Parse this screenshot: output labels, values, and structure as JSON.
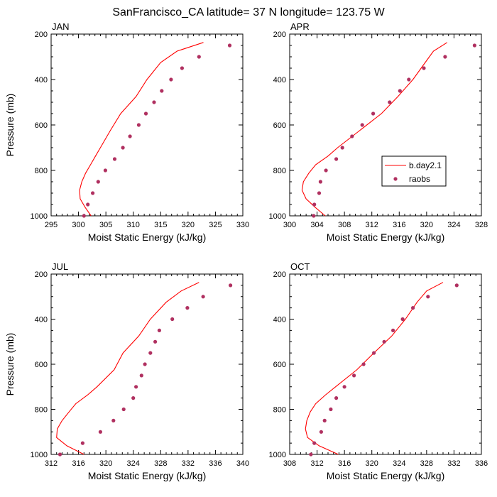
{
  "title": "SanFrancisco_CA  latitude= 37 N longitude= 123.75 W",
  "colors": {
    "model": "#ff0000",
    "obs": "#b03060",
    "axis": "#000000"
  },
  "chart_data": [
    {
      "type": "line",
      "panel": "JAN",
      "xlabel": "Moist Static Energy (kJ/kg)",
      "ylabel": "Pressure (mb)",
      "xlim": [
        295,
        330
      ],
      "ylim": [
        1000,
        200
      ],
      "y_inverted": true,
      "xticks": [
        295,
        300,
        305,
        310,
        315,
        320,
        325,
        330
      ],
      "yticks": [
        200,
        400,
        600,
        800,
        1000
      ],
      "series": [
        {
          "name": "b.day2.1",
          "style": "line",
          "points": [
            [
              302.3,
              1000
            ],
            [
              301.2,
              962
            ],
            [
              300.3,
              925
            ],
            [
              300.2,
              887
            ],
            [
              300.6,
              850
            ],
            [
              301.3,
              812
            ],
            [
              302.2,
              775
            ],
            [
              303.1,
              737
            ],
            [
              304.0,
              700
            ],
            [
              305.8,
              625
            ],
            [
              307.7,
              550
            ],
            [
              310.5,
              475
            ],
            [
              312.5,
              400
            ],
            [
              315.0,
              325
            ],
            [
              318.0,
              275
            ],
            [
              322.8,
              237
            ]
          ]
        },
        {
          "name": "raobs",
          "style": "markers",
          "points": [
            [
              301.0,
              1000
            ],
            [
              301.7,
              950
            ],
            [
              302.6,
              900
            ],
            [
              303.6,
              850
            ],
            [
              304.9,
              800
            ],
            [
              306.6,
              750
            ],
            [
              308.1,
              700
            ],
            [
              309.4,
              650
            ],
            [
              311.0,
              600
            ],
            [
              312.3,
              550
            ],
            [
              313.8,
              500
            ],
            [
              315.2,
              450
            ],
            [
              316.9,
              400
            ],
            [
              318.9,
              350
            ],
            [
              322.0,
              300
            ],
            [
              327.6,
              250
            ]
          ]
        }
      ]
    },
    {
      "type": "line",
      "panel": "APR",
      "xlabel": "Moist Static Energy (kJ/kg)",
      "ylabel": "Pressure (mb)",
      "xlim": [
        300,
        328
      ],
      "ylim": [
        1000,
        200
      ],
      "y_inverted": true,
      "xticks": [
        300,
        304,
        308,
        312,
        316,
        320,
        324,
        328
      ],
      "yticks": [
        200,
        400,
        600,
        800,
        1000
      ],
      "series": [
        {
          "name": "b.day2.1",
          "style": "line",
          "points": [
            [
              305.2,
              1000
            ],
            [
              303.7,
              962
            ],
            [
              302.4,
              925
            ],
            [
              301.8,
              887
            ],
            [
              302.0,
              850
            ],
            [
              302.8,
              812
            ],
            [
              303.8,
              775
            ],
            [
              305.6,
              737
            ],
            [
              307.0,
              700
            ],
            [
              310.2,
              625
            ],
            [
              313.4,
              550
            ],
            [
              315.8,
              475
            ],
            [
              318.0,
              400
            ],
            [
              319.8,
              325
            ],
            [
              321.0,
              275
            ],
            [
              323.0,
              237
            ]
          ]
        },
        {
          "name": "raobs",
          "style": "markers",
          "points": [
            [
              303.5,
              1000
            ],
            [
              303.6,
              950
            ],
            [
              304.3,
              900
            ],
            [
              304.5,
              850
            ],
            [
              305.3,
              800
            ],
            [
              306.8,
              750
            ],
            [
              307.7,
              700
            ],
            [
              309.1,
              650
            ],
            [
              310.6,
              600
            ],
            [
              312.2,
              550
            ],
            [
              314.6,
              500
            ],
            [
              316.1,
              450
            ],
            [
              317.4,
              400
            ],
            [
              319.6,
              350
            ],
            [
              322.7,
              300
            ],
            [
              327.0,
              250
            ]
          ]
        }
      ]
    },
    {
      "type": "line",
      "panel": "JUL",
      "xlabel": "Moist Static Energy (kJ/kg)",
      "ylabel": "Pressure (mb)",
      "xlim": [
        312,
        340
      ],
      "ylim": [
        1000,
        200
      ],
      "y_inverted": true,
      "xticks": [
        312,
        316,
        320,
        324,
        328,
        332,
        336,
        340
      ],
      "yticks": [
        200,
        400,
        600,
        800,
        1000
      ],
      "series": [
        {
          "name": "b.day2.1",
          "style": "line",
          "points": [
            [
              316.8,
              1000
            ],
            [
              314.3,
              962
            ],
            [
              312.8,
              925
            ],
            [
              312.9,
              887
            ],
            [
              313.6,
              850
            ],
            [
              314.6,
              812
            ],
            [
              315.6,
              775
            ],
            [
              317.3,
              737
            ],
            [
              318.7,
              700
            ],
            [
              321.2,
              625
            ],
            [
              322.5,
              550
            ],
            [
              324.8,
              475
            ],
            [
              326.5,
              400
            ],
            [
              328.8,
              325
            ],
            [
              331.0,
              275
            ],
            [
              333.6,
              237
            ]
          ]
        },
        {
          "name": "raobs",
          "style": "markers",
          "points": [
            [
              313.3,
              1000
            ],
            [
              316.6,
              950
            ],
            [
              319.2,
              900
            ],
            [
              321.1,
              850
            ],
            [
              322.6,
              800
            ],
            [
              324.0,
              750
            ],
            [
              324.4,
              700
            ],
            [
              325.2,
              650
            ],
            [
              325.7,
              600
            ],
            [
              326.5,
              550
            ],
            [
              327.2,
              500
            ],
            [
              327.8,
              450
            ],
            [
              329.7,
              400
            ],
            [
              331.9,
              350
            ],
            [
              334.2,
              300
            ],
            [
              338.2,
              250
            ]
          ]
        }
      ]
    },
    {
      "type": "line",
      "panel": "OCT",
      "xlabel": "Moist Static Energy (kJ/kg)",
      "ylabel": "Pressure (mb)",
      "xlim": [
        308,
        336
      ],
      "ylim": [
        1000,
        200
      ],
      "y_inverted": true,
      "xticks": [
        308,
        312,
        316,
        320,
        324,
        328,
        332,
        336
      ],
      "yticks": [
        200,
        400,
        600,
        800,
        1000
      ],
      "series": [
        {
          "name": "b.day2.1",
          "style": "line",
          "points": [
            [
              315.1,
              1000
            ],
            [
              312.3,
              962
            ],
            [
              310.6,
              925
            ],
            [
              310.3,
              887
            ],
            [
              310.5,
              850
            ],
            [
              311.0,
              812
            ],
            [
              311.8,
              775
            ],
            [
              313.2,
              737
            ],
            [
              314.7,
              700
            ],
            [
              317.8,
              625
            ],
            [
              320.3,
              550
            ],
            [
              322.9,
              475
            ],
            [
              324.9,
              400
            ],
            [
              326.6,
              325
            ],
            [
              328.0,
              275
            ],
            [
              330.4,
              237
            ]
          ]
        },
        {
          "name": "raobs",
          "style": "markers",
          "points": [
            [
              311.1,
              1000
            ],
            [
              311.6,
              950
            ],
            [
              312.6,
              900
            ],
            [
              313.1,
              850
            ],
            [
              314.0,
              800
            ],
            [
              314.8,
              750
            ],
            [
              316.0,
              700
            ],
            [
              317.4,
              650
            ],
            [
              318.8,
              600
            ],
            [
              320.3,
              550
            ],
            [
              321.8,
              500
            ],
            [
              323.1,
              450
            ],
            [
              324.5,
              400
            ],
            [
              326.0,
              350
            ],
            [
              328.2,
              300
            ],
            [
              332.4,
              250
            ]
          ]
        }
      ]
    }
  ],
  "legend": {
    "placement": "inside APR panel, middle-right",
    "entries": [
      {
        "label": "b.day2.1",
        "marker": "line"
      },
      {
        "label": "raobs",
        "marker": "dot"
      }
    ]
  }
}
